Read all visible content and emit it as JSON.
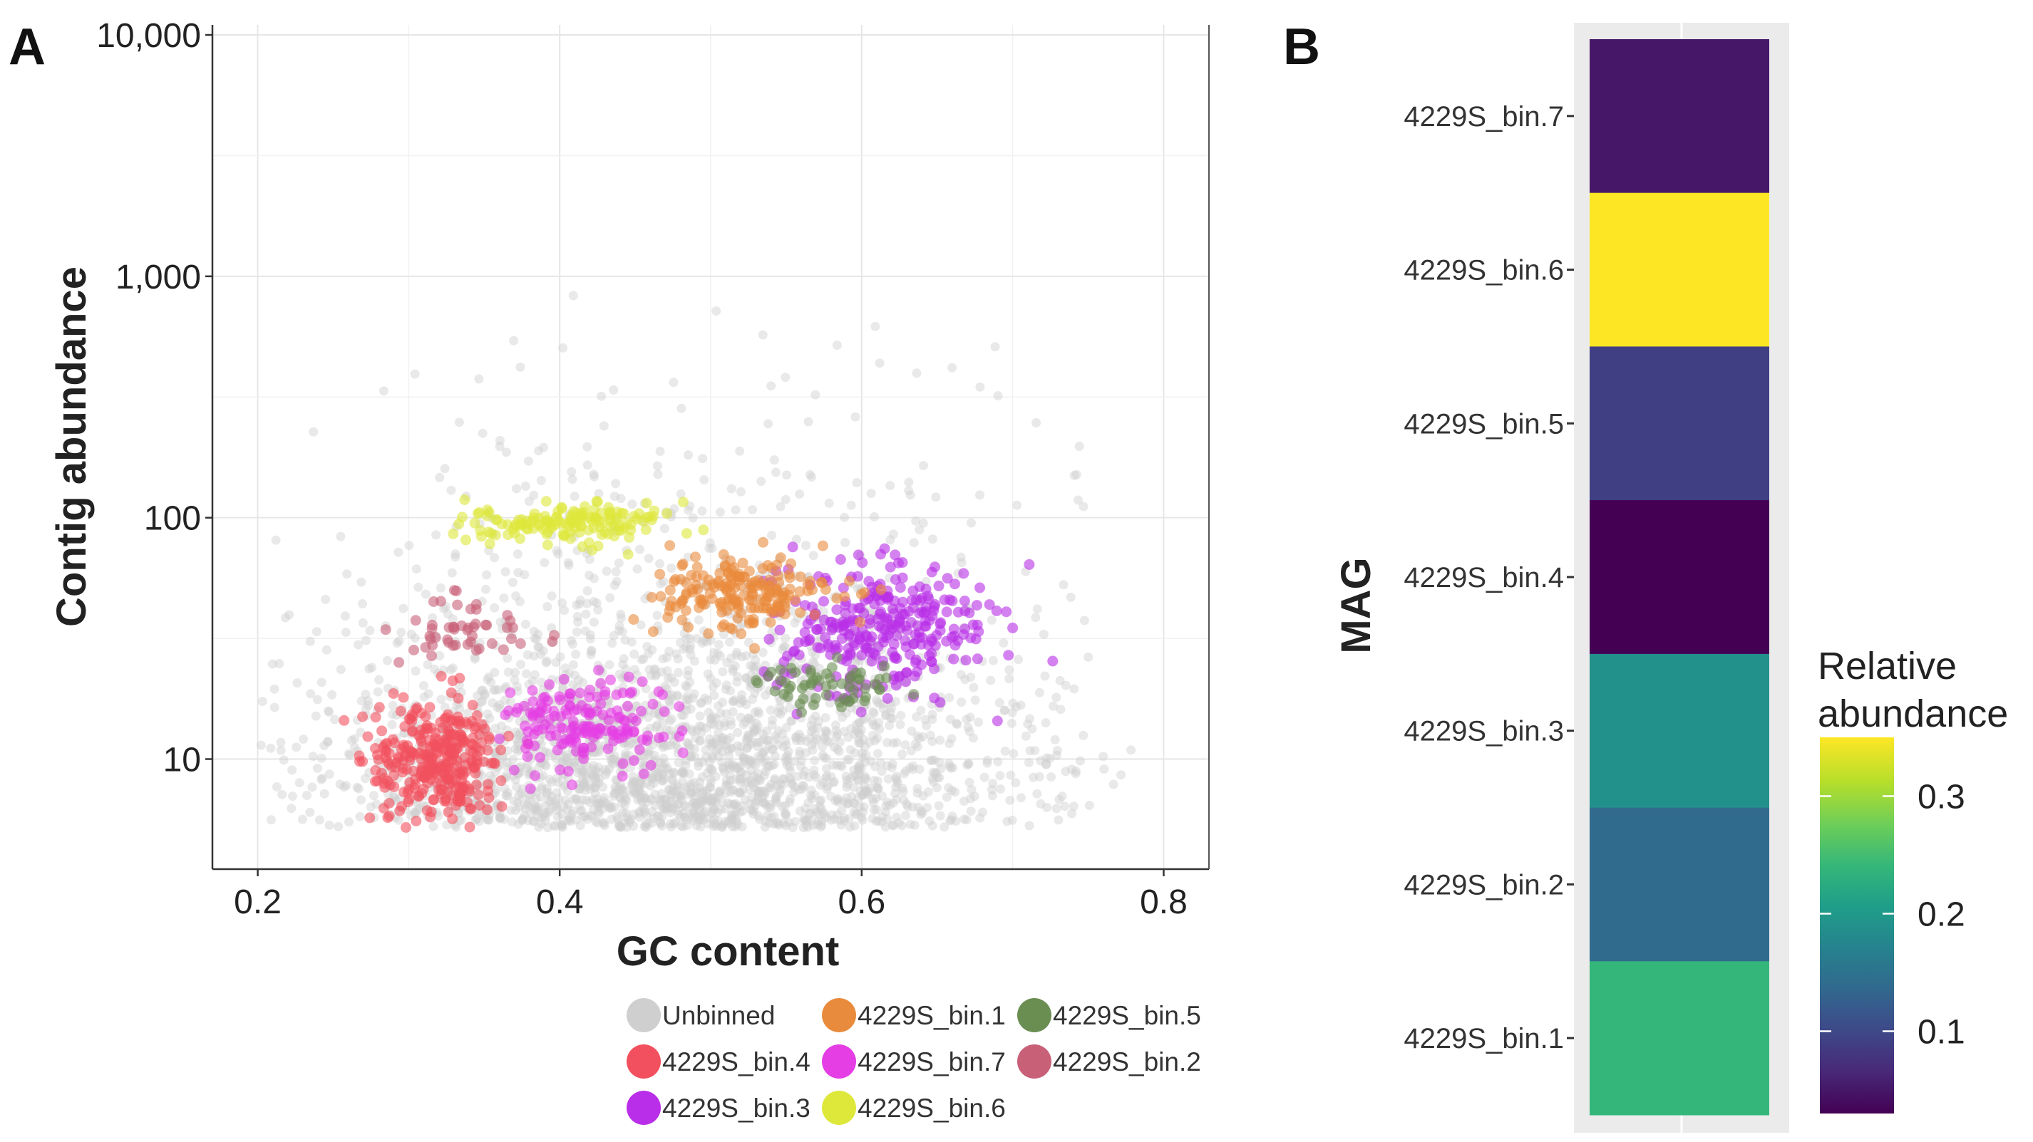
{
  "panel_a_letter": "A",
  "panel_b_letter": "B",
  "chart_data": [
    {
      "type": "scatter",
      "panel": "A",
      "xlabel": "GC content",
      "ylabel": "Contig abundance",
      "xlim": [
        0.17,
        0.83
      ],
      "ylim": [
        3.5,
        11000
      ],
      "yscale": "log",
      "x_ticks": [
        0.2,
        0.4,
        0.6,
        0.8
      ],
      "x_tick_labels": [
        "0.2",
        "0.4",
        "0.6",
        "0.8"
      ],
      "y_ticks": [
        10,
        100,
        1000,
        10000
      ],
      "y_tick_labels": [
        "10",
        "100",
        "1,000",
        "10,000"
      ],
      "grid": true,
      "legend_position": "bottom",
      "series": [
        {
          "name": "Unbinned",
          "color": "#cfcfcf",
          "gc_center": 0.48,
          "gc_spread": 0.12,
          "abundance_center": 9,
          "abundance_spread": 0.45,
          "points": 2600
        },
        {
          "name": "4229S_bin.4",
          "color": "#f2505e",
          "gc_center": 0.32,
          "gc_spread": 0.022,
          "abundance_center": 10,
          "abundance_spread": 0.12,
          "points": 320
        },
        {
          "name": "4229S_bin.3",
          "color": "#b92ee8",
          "gc_center": 0.615,
          "gc_spread": 0.035,
          "abundance_center": 35,
          "abundance_spread": 0.14,
          "points": 300
        },
        {
          "name": "4229S_bin.1",
          "color": "#e98b3c",
          "gc_center": 0.52,
          "gc_spread": 0.028,
          "abundance_center": 48,
          "abundance_spread": 0.08,
          "points": 190
        },
        {
          "name": "4229S_bin.7",
          "color": "#e43ee4",
          "gc_center": 0.42,
          "gc_spread": 0.028,
          "abundance_center": 14,
          "abundance_spread": 0.1,
          "points": 170
        },
        {
          "name": "4229S_bin.6",
          "color": "#dde83a",
          "gc_center": 0.41,
          "gc_spread": 0.035,
          "abundance_center": 95,
          "abundance_spread": 0.04,
          "points": 150
        },
        {
          "name": "4229S_bin.5",
          "color": "#6a8e52",
          "gc_center": 0.58,
          "gc_spread": 0.025,
          "abundance_center": 20,
          "abundance_spread": 0.05,
          "points": 60
        },
        {
          "name": "4229S_bin.2",
          "color": "#c86078",
          "gc_center": 0.335,
          "gc_spread": 0.022,
          "abundance_center": 33,
          "abundance_spread": 0.07,
          "points": 50
        }
      ],
      "legend": [
        [
          "Unbinned",
          "4229S_bin.1",
          "4229S_bin.5"
        ],
        [
          "4229S_bin.4",
          "4229S_bin.7",
          "4229S_bin.2"
        ],
        [
          "4229S_bin.3",
          "4229S_bin.6"
        ]
      ]
    },
    {
      "type": "heatmap",
      "panel": "B",
      "ylabel": "MAG",
      "categories": [
        "4229S_bin.7",
        "4229S_bin.6",
        "4229S_bin.5",
        "4229S_bin.4",
        "4229S_bin.3",
        "4229S_bin.2",
        "4229S_bin.1"
      ],
      "values": [
        0.05,
        0.35,
        0.09,
        0.03,
        0.19,
        0.14,
        0.24
      ],
      "colorbar_title": [
        "Relative",
        "abundance"
      ],
      "colorbar_ticks": [
        0.1,
        0.2,
        0.3
      ],
      "colorbar_tick_labels": [
        "0.1",
        "0.2",
        "0.3"
      ],
      "colorbar_range": [
        0.03,
        0.35
      ],
      "colormap": "viridis"
    }
  ]
}
